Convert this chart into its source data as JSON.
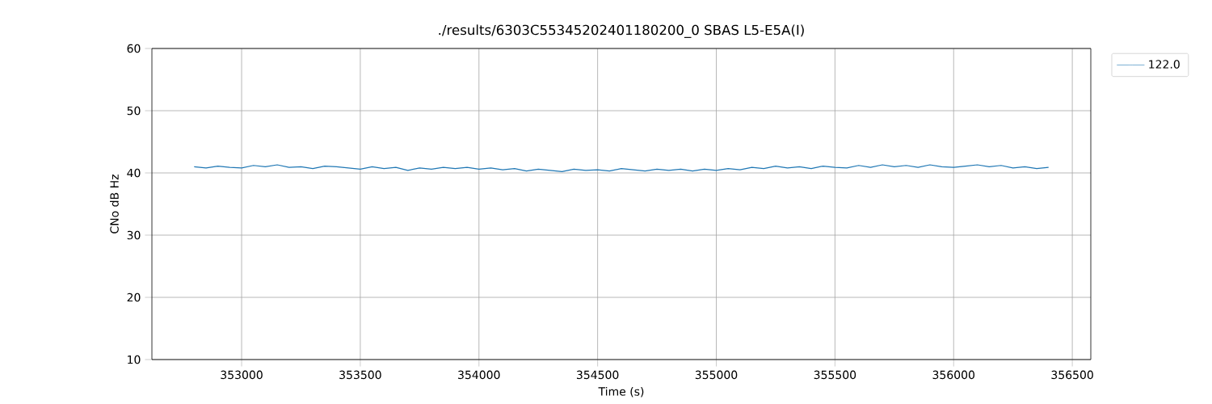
{
  "chart_data": {
    "type": "line",
    "title": "./results/6303C55345202401180200_0 SBAS L5-E5A(I)",
    "xlabel": "Time (s)",
    "ylabel": "CNo dB Hz",
    "x": [
      352800,
      352850,
      352900,
      352950,
      353000,
      353050,
      353100,
      353150,
      353200,
      353250,
      353300,
      353350,
      353400,
      353450,
      353500,
      353550,
      353600,
      353650,
      353700,
      353750,
      353800,
      353850,
      353900,
      353950,
      354000,
      354050,
      354100,
      354150,
      354200,
      354250,
      354300,
      354350,
      354400,
      354450,
      354500,
      354550,
      354600,
      354650,
      354700,
      354750,
      354800,
      354850,
      354900,
      354950,
      355000,
      355050,
      355100,
      355150,
      355200,
      355250,
      355300,
      355350,
      355400,
      355450,
      355500,
      355550,
      355600,
      355650,
      355700,
      355750,
      355800,
      355850,
      355900,
      355950,
      356000,
      356050,
      356100,
      356150,
      356200,
      356250,
      356300,
      356350,
      356400
    ],
    "series": [
      {
        "name": "122.0",
        "color": "#1f77b4",
        "values": [
          41.0,
          40.8,
          41.1,
          40.9,
          40.8,
          41.2,
          41.0,
          41.3,
          40.9,
          41.0,
          40.7,
          41.1,
          41.0,
          40.8,
          40.6,
          41.0,
          40.7,
          40.9,
          40.4,
          40.8,
          40.6,
          40.9,
          40.7,
          40.9,
          40.6,
          40.8,
          40.5,
          40.7,
          40.3,
          40.6,
          40.4,
          40.2,
          40.6,
          40.4,
          40.5,
          40.3,
          40.7,
          40.5,
          40.3,
          40.6,
          40.4,
          40.6,
          40.3,
          40.6,
          40.4,
          40.7,
          40.5,
          40.9,
          40.7,
          41.1,
          40.8,
          41.0,
          40.7,
          41.1,
          40.9,
          40.8,
          41.2,
          40.9,
          41.3,
          41.0,
          41.2,
          40.9,
          41.3,
          41.0,
          40.9,
          41.1,
          41.3,
          41.0,
          41.2,
          40.8,
          41.0,
          40.7,
          40.9
        ]
      }
    ],
    "xlim": [
      352622,
      356578
    ],
    "ylim": [
      10,
      60
    ],
    "xticks": [
      353000,
      353500,
      354000,
      354500,
      355000,
      355500,
      356000,
      356500
    ],
    "yticks": [
      10,
      20,
      30,
      40,
      50,
      60
    ],
    "grid": true,
    "legend": "top right",
    "marker": "none",
    "line_style": "solid"
  }
}
